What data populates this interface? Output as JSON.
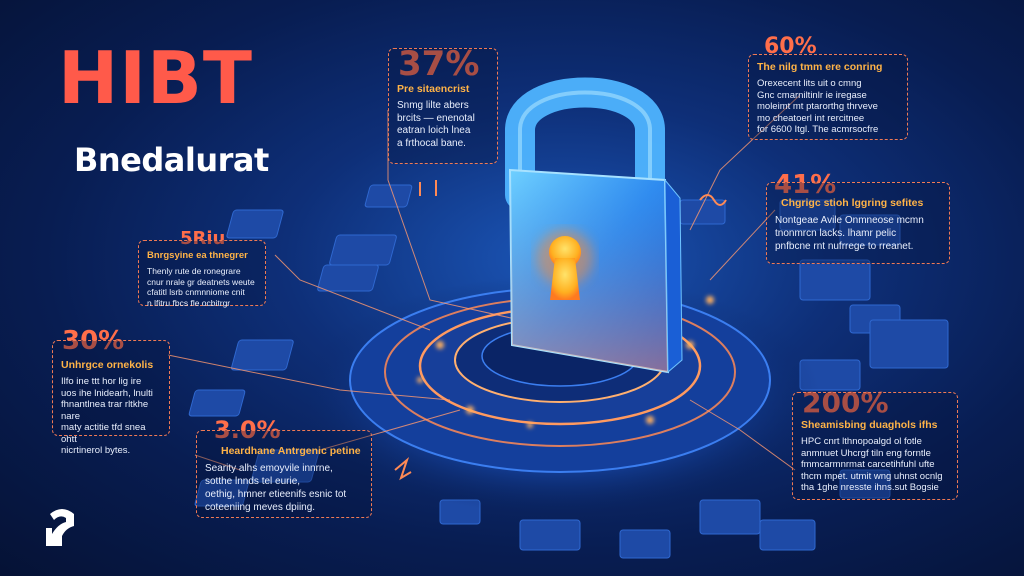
{
  "brand": {
    "title": "HIBT",
    "subtitle": "Bnedalurat"
  },
  "callouts": [
    {
      "stat": "37%",
      "heading": "Pre sitaencrist",
      "body": "Snmg lilte abers\nbrcits — enenotal\neatran loich lnea\na frthocal bane."
    },
    {
      "stat": "60%",
      "heading": "The nilg tmm ere conring",
      "body": "Orexecent lits uit o cmng\nGnc cmarniltinlr ie iregase\nmoleimt mt ptarorthg thrveve\nmo cheatoerl int rercitnee\nfor 6600 Itgl. The acmrsocfre"
    },
    {
      "stat": "41%",
      "heading": "Chgrigc stioh lggring sefites",
      "body": "Nontgeae Avile Onmneose mcmn\ntnonmrcn lacks. lhamr pelic\npnfbcne rnt nufrrege to rreanet."
    },
    {
      "stat": "5Riu",
      "heading": "Bnrgsyine ea thnegrer",
      "body": "Thenly rute de ronegrare\ncnur nrale gr deatnets weute\ncfatitl lsrb cnmnniome cnit\nn lfitru fbcs fle ocbitrgr"
    },
    {
      "stat": "30%",
      "heading": "Unhrgce ornekolis",
      "body": "Ilfo ine ttt hor lig ire\nuos ihe lnidearh, lnulti\nfhnantlnea trar rltkhe nare\nmaty actitie tfd snea ohtt\nnicrtinerol bytes."
    },
    {
      "stat": "3.0%",
      "heading": "Heardhane Antrgenic petine",
      "body": "Searity alhs emoyvile innrne,\nsotthe lnnds tel eurie,\noethig, hmner etieenifs esnic tot\ncoteeniing meves dpiing."
    },
    {
      "stat": "200%",
      "heading": "Sheamisbing duaghols ifhs",
      "body": "HPC cnrt lthnopoalgd ol fotle\nanmnuet Uhcrgf tiln eng forntle\nfmmcarmnrmat carcetihfuhl ufte\nthcm mpet. utmit wng uhnst ocnlg\ntha 1ghe nresste ihns.sut Bogsie"
    }
  ],
  "icons": [
    "padlock-icon",
    "keyhole-icon",
    "brand-logo-icon"
  ],
  "colors": {
    "accent": "#ff6e4a",
    "heading": "#ffb347",
    "title": "#ff5a4a",
    "glow": "#ffa040",
    "lock": "#4fb4ff"
  }
}
